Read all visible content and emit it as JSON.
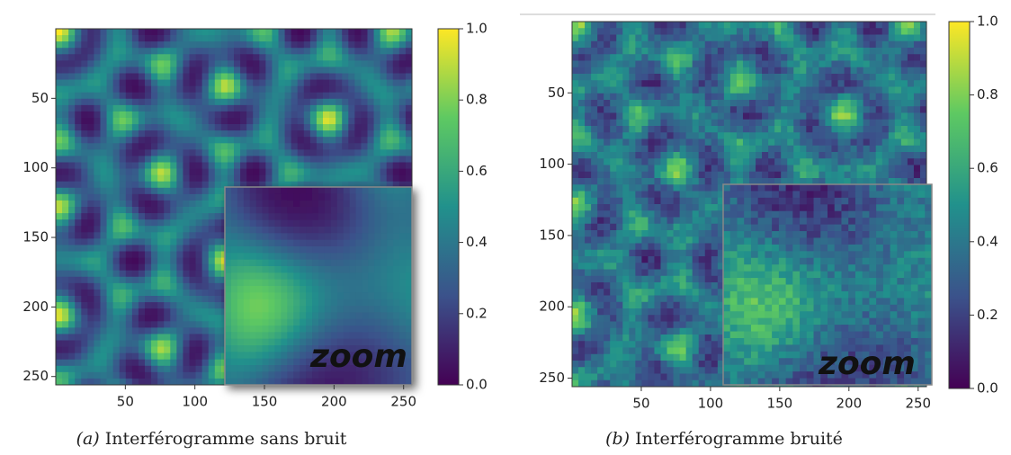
{
  "chart_data": [
    {
      "type": "heatmap",
      "colormap": "viridis",
      "noisy": false,
      "xlim": [
        0,
        256
      ],
      "xticks": [
        50,
        100,
        150,
        200,
        250
      ],
      "ylim": [
        0,
        256
      ],
      "y_inverted": true,
      "yticks": [
        50,
        100,
        150,
        200,
        250
      ],
      "colorbar": {
        "lim": [
          0,
          1
        ],
        "ticks": [
          {
            "value": 0,
            "label": "0.0"
          },
          0.2,
          0.4,
          0.6,
          0.8,
          {
            "value": 1,
            "label": "1.0"
          }
        ]
      },
      "annotation": "zoom",
      "caption_label": "(a)",
      "caption": "Interférogramme sans bruit"
    },
    {
      "type": "heatmap",
      "colormap": "viridis",
      "noisy": true,
      "xlim": [
        0,
        256
      ],
      "xticks": [
        50,
        100,
        150,
        200,
        250
      ],
      "ylim": [
        0,
        256
      ],
      "y_inverted": true,
      "yticks": [
        50,
        100,
        150,
        200,
        250
      ],
      "colorbar": {
        "lim": [
          0,
          1
        ],
        "ticks": [
          {
            "value": 0,
            "label": "0.0"
          },
          0.2,
          0.4,
          0.6,
          0.8,
          {
            "value": 1,
            "label": "1.0"
          }
        ]
      },
      "annotation": "zoom",
      "caption_label": "(b)",
      "caption": "Interférogramme bruité"
    }
  ]
}
